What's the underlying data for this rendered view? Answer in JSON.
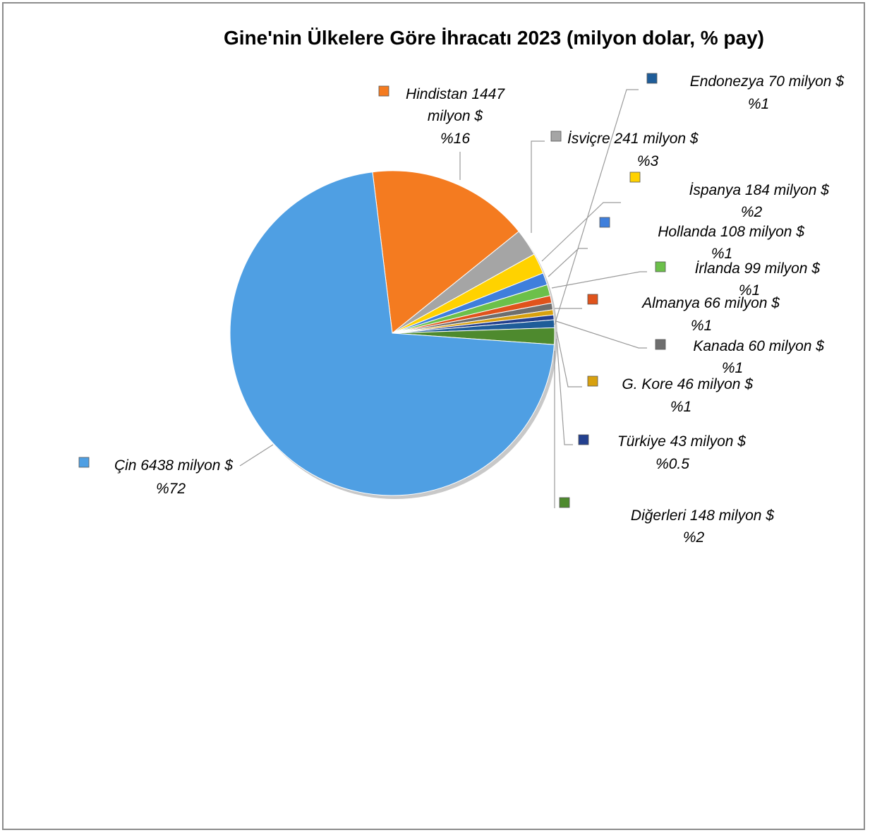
{
  "chart_data": {
    "type": "pie",
    "title": "Gine'nin Ülkelere Göre İhracatı 2023 (milyon dolar, % pay)",
    "legend": "none",
    "slices": [
      {
        "name": "Çin",
        "value": 6438,
        "label": "Çin 6438 milyon $",
        "pct": "%72",
        "color": "#4f9fe3"
      },
      {
        "name": "Hindistan",
        "value": 1447,
        "label": "Hindistan 1447 milyon $",
        "pct": "%16",
        "color": "#f47b20"
      },
      {
        "name": "İsviçre",
        "value": 241,
        "label": "İsviçre 241 milyon $",
        "pct": "%3",
        "color": "#a5a5a5"
      },
      {
        "name": "İspanya",
        "value": 184,
        "label": "İspanya 184 milyon $",
        "pct": "%2",
        "color": "#ffd200"
      },
      {
        "name": "Hollanda",
        "value": 108,
        "label": "Hollanda 108 milyon $",
        "pct": "%1",
        "color": "#3f7fdc"
      },
      {
        "name": "İrlanda",
        "value": 99,
        "label": "İrlanda 99 milyon $",
        "pct": "%1",
        "color": "#6cc04a"
      },
      {
        "name": "Almanya",
        "value": 66,
        "label": "Almanya 66 milyon $",
        "pct": "%1",
        "color": "#e0531c"
      },
      {
        "name": "Kanada",
        "value": 60,
        "label": "Kanada 60 milyon $",
        "pct": "%1",
        "color": "#6e6e6e"
      },
      {
        "name": "G. Kore",
        "value": 46,
        "label": "G. Kore 46 milyon $",
        "pct": "%1",
        "color": "#d8a10f"
      },
      {
        "name": "Türkiye",
        "value": 43,
        "label": "Türkiye 43 milyon $",
        "pct": "%0.5",
        "color": "#23408f"
      },
      {
        "name": "Endonezya",
        "value": 70,
        "label": "Endonezya 70 milyon $",
        "pct": "%1",
        "color": "#1f5d99"
      },
      {
        "name": "Diğerleri",
        "value": 148,
        "label": "Diğerleri 148 milyon $",
        "pct": "%2",
        "color": "#4e8a2e"
      }
    ]
  }
}
